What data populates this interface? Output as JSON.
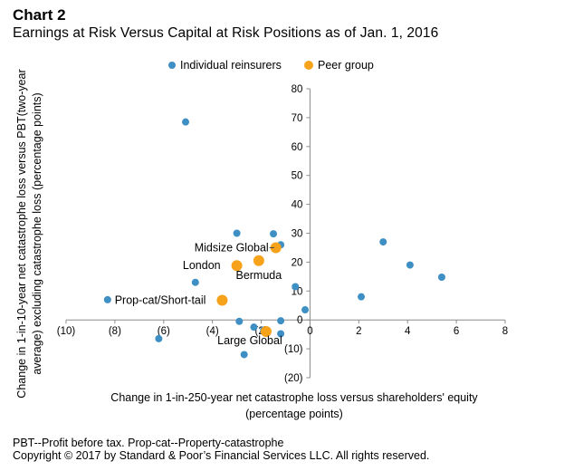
{
  "header": {
    "title": "Chart 2",
    "subtitle": "Earnings at Risk Versus Capital at Risk Positions as of Jan. 1, 2016"
  },
  "footer": {
    "footnote": "PBT--Profit before tax. Prop-cat--Property-catastrophe",
    "copyright": "Copyright © 2017 by Standard & Poor’s Financial Services LLC. All rights reserved."
  },
  "chart_data": {
    "type": "scatter",
    "xlabel": "Change in 1-in-250-year net catastrophe loss versus shareholders' equity",
    "xlabel_line2": "(percentage points)",
    "ylabel": "Change in 1-in-10-year net catastrophe loss versus PBT(two-year",
    "ylabel_line2": "average) excluding catastrophe loss (percentage points)",
    "xlim": [
      -10,
      8
    ],
    "ylim": [
      -20,
      80
    ],
    "x_ticks": [
      -10,
      -8,
      -6,
      -4,
      -2,
      0,
      2,
      4,
      6,
      8
    ],
    "x_tick_labels": [
      "(10)",
      "(8)",
      "(6)",
      "(4)",
      "(2)",
      "0",
      "2",
      "4",
      "6",
      "8"
    ],
    "y_ticks": [
      -20,
      -10,
      0,
      10,
      20,
      30,
      40,
      50,
      60,
      70,
      80
    ],
    "y_tick_labels": [
      "(20)",
      "(10)",
      "0",
      "10",
      "20",
      "30",
      "40",
      "50",
      "60",
      "70",
      "80"
    ],
    "grid": false,
    "legend_position": "top",
    "series": [
      {
        "name": "Individual reinsurers",
        "color": "#3d8fc4",
        "points": [
          {
            "x": -5.1,
            "y": 68.5
          },
          {
            "x": -3.0,
            "y": 30.0
          },
          {
            "x": -1.5,
            "y": 29.8
          },
          {
            "x": -1.2,
            "y": 26.0
          },
          {
            "x": 3.0,
            "y": 27.0
          },
          {
            "x": 4.1,
            "y": 19.0
          },
          {
            "x": 5.4,
            "y": 14.8
          },
          {
            "x": -4.7,
            "y": 13.0
          },
          {
            "x": -0.6,
            "y": 11.5
          },
          {
            "x": 2.1,
            "y": 8.0
          },
          {
            "x": -8.3,
            "y": 7.0
          },
          {
            "x": -0.2,
            "y": 3.5
          },
          {
            "x": -2.9,
            "y": -0.5
          },
          {
            "x": -1.2,
            "y": -0.3
          },
          {
            "x": -2.3,
            "y": -2.5
          },
          {
            "x": -1.9,
            "y": -3.5
          },
          {
            "x": -1.2,
            "y": -4.8
          },
          {
            "x": -6.2,
            "y": -6.5
          },
          {
            "x": -2.7,
            "y": -12.0
          }
        ]
      },
      {
        "name": "Peer group",
        "color": "#f7a21b",
        "points": [
          {
            "x": -1.4,
            "y": 25.0,
            "label": "Midsize Global"
          },
          {
            "x": -2.1,
            "y": 20.5,
            "label": "Bermuda"
          },
          {
            "x": -3.0,
            "y": 18.8,
            "label": "London"
          },
          {
            "x": -3.6,
            "y": 6.8,
            "label": "Prop-cat/Short-tail"
          },
          {
            "x": -1.8,
            "y": -4.0,
            "label": "Large Global"
          }
        ]
      }
    ]
  }
}
